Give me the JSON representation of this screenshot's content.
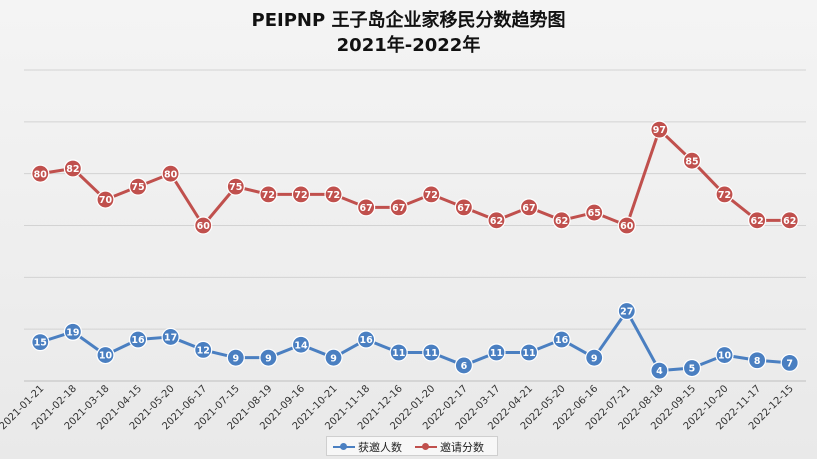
{
  "title_line1": "PEIPNP 王子岛企业家移民分数趋势图",
  "title_line2": "2021年-2022年",
  "colors": {
    "blue": "#4a7fc1",
    "red": "#c0504d",
    "grid": "#d3d3d3",
    "axis": "#bfbfbf"
  },
  "chart_data": {
    "type": "line",
    "categories": [
      "2021-01-21",
      "2021-02-18",
      "2021-03-18",
      "2021-04-15",
      "2021-05-20",
      "2021-06-17",
      "2021-07-15",
      "2021-08-19",
      "2021-09-16",
      "2021-10-21",
      "2021-11-18",
      "2021-12-16",
      "2022-01-20",
      "2022-02-17",
      "2022-03-17",
      "2022-04-21",
      "2022-05-20",
      "2022-06-16",
      "2022-07-21",
      "2022-08-18",
      "2022-09-15",
      "2022-10-20",
      "2022-11-17",
      "2022-12-15"
    ],
    "series": [
      {
        "name": "获邀人数",
        "color": "#4a7fc1",
        "values": [
          15,
          19,
          10,
          16,
          17,
          12,
          9,
          9,
          14,
          9,
          16,
          11,
          11,
          6,
          11,
          11,
          16,
          9,
          27,
          4,
          5,
          10,
          8,
          7
        ]
      },
      {
        "name": "邀请分数",
        "color": "#c0504d",
        "values": [
          80,
          82,
          70,
          75,
          80,
          60,
          75,
          72,
          72,
          72,
          67,
          67,
          72,
          67,
          62,
          67,
          62,
          65,
          60,
          97,
          85,
          72,
          62,
          62
        ]
      }
    ],
    "legend_position": "bottom",
    "grid": true
  }
}
